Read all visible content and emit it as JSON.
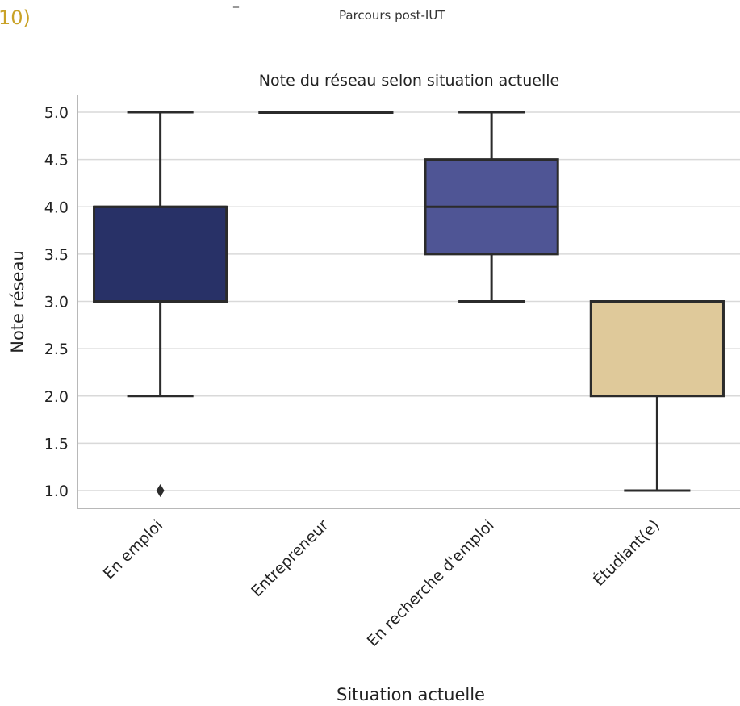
{
  "page": {
    "corner_mark": "10)",
    "header_dash": "_",
    "header_text": "Parcours post-IUT"
  },
  "chart_data": {
    "type": "boxplot",
    "title": "Note du réseau selon situation actuelle",
    "xlabel": "Situation actuelle",
    "ylabel": "Note réseau",
    "ylim": [
      0.8,
      5.15
    ],
    "yticks": [
      1.0,
      1.5,
      2.0,
      2.5,
      3.0,
      3.5,
      4.0,
      4.5,
      5.0
    ],
    "ytick_labels": [
      "1.0",
      "1.5",
      "2.0",
      "2.5",
      "3.0",
      "3.5",
      "4.0",
      "4.5",
      "5.0"
    ],
    "grid": "horizontal",
    "categories": [
      "En emploi",
      "Entrepreneur",
      "En recherche d'emploi",
      "Étudiant(e)"
    ],
    "boxes": [
      {
        "category": "En emploi",
        "whisker_low": 2.0,
        "q1": 3.0,
        "median": 4.0,
        "q3": 4.0,
        "whisker_high": 5.0,
        "outliers": [
          1.0
        ],
        "color": "#283167"
      },
      {
        "category": "Entrepreneur",
        "whisker_low": 5.0,
        "q1": 5.0,
        "median": 5.0,
        "q3": 5.0,
        "whisker_high": 5.0,
        "outliers": [],
        "color": "#283167"
      },
      {
        "category": "En recherche d'emploi",
        "whisker_low": 3.0,
        "q1": 3.5,
        "median": 4.0,
        "q3": 4.5,
        "whisker_high": 5.0,
        "outliers": [],
        "color": "#4f5595"
      },
      {
        "category": "Étudiant(e)",
        "whisker_low": 1.0,
        "q1": 2.0,
        "median": 3.0,
        "q3": 3.0,
        "whisker_high": 3.0,
        "outliers": [],
        "color": "#dfc99a"
      }
    ],
    "line_color": "#2b2b2b",
    "grid_color": "#d9d9d9",
    "axis_color": "#b8b8b8"
  }
}
